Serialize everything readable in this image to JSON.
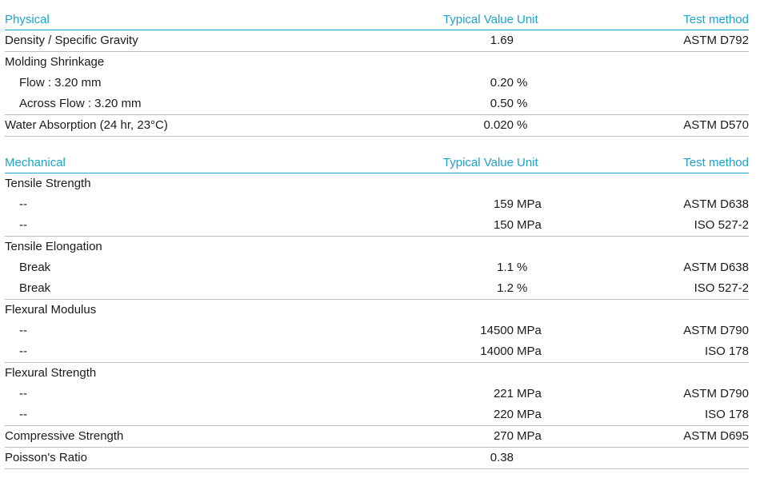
{
  "sections": [
    {
      "headers": {
        "property": "Physical",
        "value": "Typical Value",
        "unit": "Unit",
        "test": "Test method"
      },
      "rows": [
        {
          "property": "Density / Specific Gravity",
          "value": "1.69",
          "unit": "",
          "test": "ASTM D792",
          "indent": false,
          "rule": true
        },
        {
          "property": "Molding Shrinkage",
          "value": "",
          "unit": "",
          "test": "",
          "indent": false,
          "rule": false
        },
        {
          "property": "Flow : 3.20 mm",
          "value": "0.20",
          "unit": "%",
          "test": "",
          "indent": true,
          "rule": false
        },
        {
          "property": "Across Flow : 3.20 mm",
          "value": "0.50",
          "unit": "%",
          "test": "",
          "indent": true,
          "rule": true
        },
        {
          "property": "Water Absorption (24 hr, 23°C)",
          "value": "0.020",
          "unit": "%",
          "test": "ASTM D570",
          "indent": false,
          "rule": true
        }
      ]
    },
    {
      "headers": {
        "property": "Mechanical",
        "value": "Typical Value",
        "unit": "Unit",
        "test": "Test method"
      },
      "rows": [
        {
          "property": "Tensile Strength",
          "value": "",
          "unit": "",
          "test": "",
          "indent": false,
          "rule": false
        },
        {
          "property": "--",
          "value": "159",
          "unit": "MPa",
          "test": "ASTM D638",
          "indent": true,
          "rule": false
        },
        {
          "property": "--",
          "value": "150",
          "unit": "MPa",
          "test": "ISO 527-2",
          "indent": true,
          "rule": true
        },
        {
          "property": "Tensile Elongation",
          "value": "",
          "unit": "",
          "test": "",
          "indent": false,
          "rule": false
        },
        {
          "property": "Break",
          "value": "1.1",
          "unit": "%",
          "test": "ASTM D638",
          "indent": true,
          "rule": false
        },
        {
          "property": "Break",
          "value": "1.2",
          "unit": "%",
          "test": "ISO 527-2",
          "indent": true,
          "rule": true
        },
        {
          "property": "Flexural Modulus",
          "value": "",
          "unit": "",
          "test": "",
          "indent": false,
          "rule": false
        },
        {
          "property": "--",
          "value": "14500",
          "unit": "MPa",
          "test": "ASTM D790",
          "indent": true,
          "rule": false
        },
        {
          "property": "--",
          "value": "14000",
          "unit": "MPa",
          "test": "ISO 178",
          "indent": true,
          "rule": true
        },
        {
          "property": "Flexural Strength",
          "value": "",
          "unit": "",
          "test": "",
          "indent": false,
          "rule": false
        },
        {
          "property": "--",
          "value": "221",
          "unit": "MPa",
          "test": "ASTM D790",
          "indent": true,
          "rule": false
        },
        {
          "property": "--",
          "value": "220",
          "unit": "MPa",
          "test": "ISO 178",
          "indent": true,
          "rule": true
        },
        {
          "property": "Compressive Strength",
          "value": "270",
          "unit": "MPa",
          "test": "ASTM D695",
          "indent": false,
          "rule": true
        },
        {
          "property": "Poisson's Ratio",
          "value": "0.38",
          "unit": "",
          "test": "",
          "indent": false,
          "rule": true
        }
      ]
    }
  ]
}
